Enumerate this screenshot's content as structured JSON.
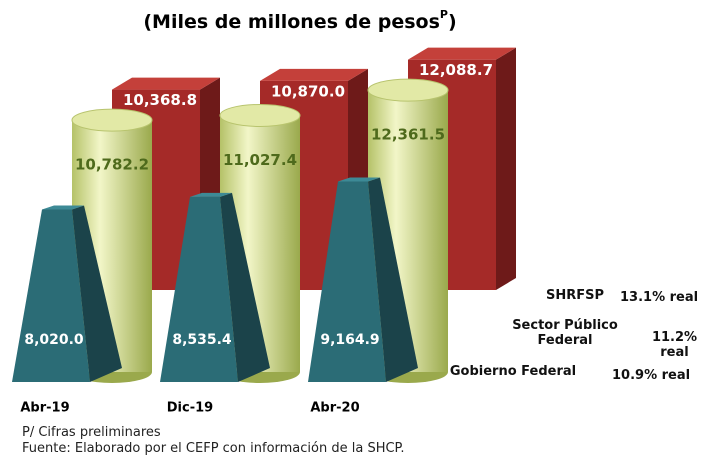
{
  "chart_data": {
    "type": "bar3d",
    "title_parts": [
      "(Miles de millones de pesos",
      "P",
      ")"
    ],
    "categories": [
      "Abr-19",
      "Dic-19",
      "Abr-20"
    ],
    "series": [
      {
        "name": "SHRFSP",
        "growth": "13.1% real",
        "shape": "box",
        "color": "#a52a28",
        "values": [
          10368.8,
          10870.0,
          12088.7
        ],
        "value_labels": [
          "10,368.8",
          "10,870.0",
          "12,088.7"
        ]
      },
      {
        "name": "Sector Público Federal",
        "growth": "11.2% real",
        "shape": "cylinder",
        "color": "#d3dc8c",
        "values": [
          10782.2,
          11027.4,
          12361.5
        ],
        "value_labels": [
          "10,782.2",
          "11,027.4",
          "12,361.5"
        ]
      },
      {
        "name": "Gobierno Federal",
        "growth": "10.9% real",
        "shape": "pyramid",
        "color": "#2b6c76",
        "values": [
          8020.0,
          8535.4,
          9164.9
        ],
        "value_labels": [
          "8,020.0",
          "8,535.4",
          "9,164.9"
        ]
      }
    ],
    "notes": [
      "P/ Cifras preliminares",
      "Fuente: Elaborado por el CEFP con información de la SHCP."
    ]
  }
}
